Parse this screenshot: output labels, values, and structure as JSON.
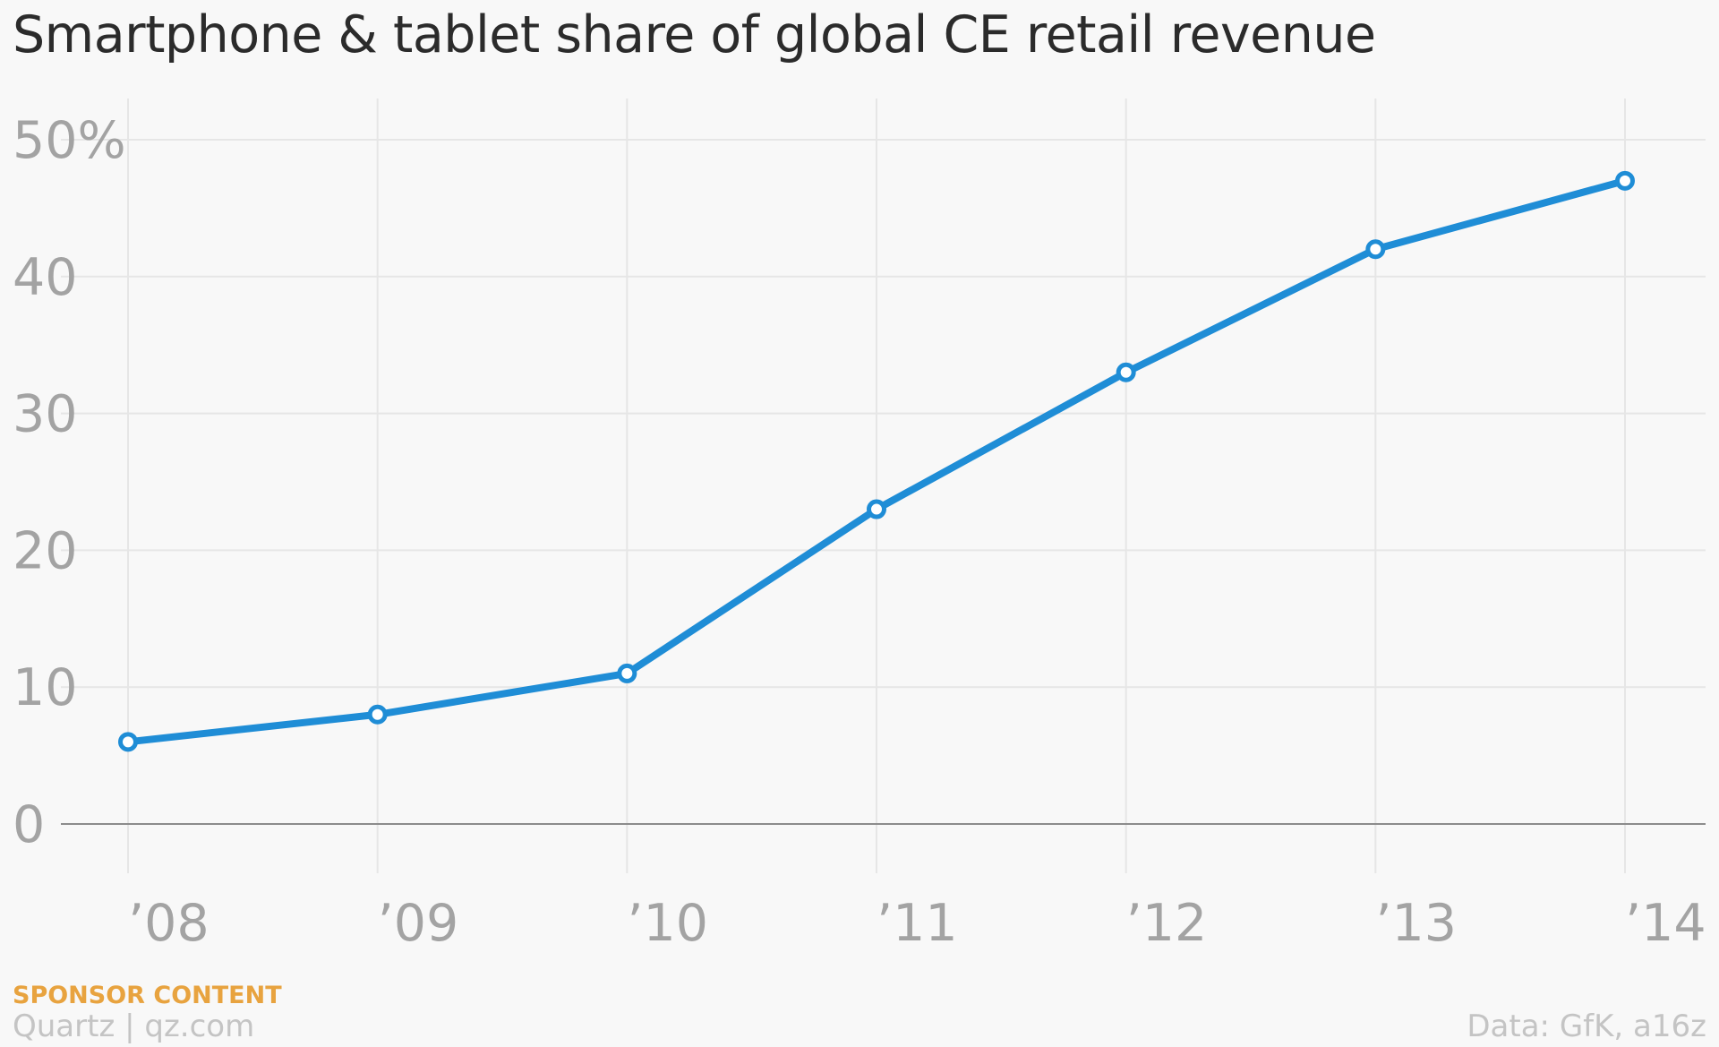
{
  "title": "Smartphone & tablet share of global CE retail revenue",
  "footer": {
    "sponsor_label": "SPONSOR CONTENT",
    "brand": "Quartz | qz.com",
    "source": "Data: GfK, a16z"
  },
  "colors": {
    "line": "#1f8dd6",
    "gridline": "#e6e6e6",
    "baseline": "#8c8c8c",
    "tick_text": "#a3a3a3",
    "sponsor": "#e8a33f",
    "footer_text": "#c4c4c4",
    "background": "#f8f8f8"
  },
  "chart_data": {
    "type": "line",
    "title": "Smartphone & tablet share of global CE retail revenue",
    "xlabel": "",
    "ylabel": "",
    "categories": [
      "’08",
      "’09",
      "’10",
      "’11",
      "’12",
      "’13",
      "’14"
    ],
    "x": [
      2008,
      2009,
      2010,
      2011,
      2012,
      2013,
      2014
    ],
    "series": [
      {
        "values": [
          6,
          8,
          11,
          23,
          33,
          42,
          47
        ]
      }
    ],
    "yticks": [
      0,
      10,
      20,
      30,
      40,
      50
    ],
    "ytick_labels": [
      "0",
      "10",
      "20",
      "30",
      "40",
      "50%"
    ],
    "ylim": [
      0,
      50
    ],
    "grid": true,
    "legend": "none"
  }
}
